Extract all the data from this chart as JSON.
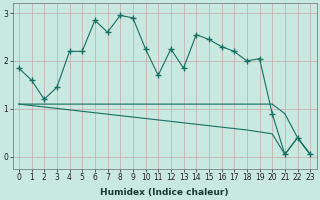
{
  "xlabel": "Humidex (Indice chaleur)",
  "background_color": "#c8e8e0",
  "grid_color": "#b8c8c0",
  "line_color": "#1a6e62",
  "ylim": [
    -0.25,
    3.2
  ],
  "xlim": [
    -0.5,
    23.5
  ],
  "yticks": [
    0,
    1,
    2,
    3
  ],
  "xticks": [
    0,
    1,
    2,
    3,
    4,
    5,
    6,
    7,
    8,
    9,
    10,
    11,
    12,
    13,
    14,
    15,
    16,
    17,
    18,
    19,
    20,
    21,
    22,
    23
  ],
  "line1_x": [
    0,
    1,
    2,
    3,
    4,
    5,
    6,
    7,
    8,
    9,
    10,
    11,
    12,
    13,
    14,
    15,
    16,
    17,
    18,
    19,
    20,
    21,
    22,
    23
  ],
  "line1_y": [
    1.85,
    1.6,
    1.2,
    1.45,
    2.2,
    2.2,
    2.85,
    2.6,
    2.95,
    2.9,
    2.25,
    1.7,
    2.25,
    1.85,
    2.55,
    2.45,
    2.3,
    2.2,
    2.0,
    2.05,
    0.9,
    0.05,
    0.4,
    0.05
  ],
  "line2_x": [
    0,
    1,
    2,
    3,
    4,
    5,
    6,
    7,
    8,
    9,
    10,
    11,
    12,
    13,
    14,
    15,
    16,
    17,
    18,
    19,
    20,
    21,
    22,
    23
  ],
  "line2_y": [
    1.1,
    1.1,
    1.1,
    1.1,
    1.1,
    1.1,
    1.1,
    1.1,
    1.1,
    1.1,
    1.1,
    1.1,
    1.1,
    1.1,
    1.1,
    1.1,
    1.1,
    1.1,
    1.1,
    1.1,
    1.1,
    0.9,
    0.4,
    0.05
  ],
  "line3_x": [
    0,
    1,
    2,
    3,
    4,
    5,
    6,
    7,
    8,
    9,
    10,
    11,
    12,
    13,
    14,
    15,
    16,
    17,
    18,
    19,
    20,
    21,
    22,
    23
  ],
  "line3_y": [
    1.1,
    1.07,
    1.04,
    1.01,
    0.98,
    0.95,
    0.92,
    0.89,
    0.86,
    0.83,
    0.8,
    0.77,
    0.74,
    0.71,
    0.68,
    0.65,
    0.62,
    0.59,
    0.56,
    0.52,
    0.48,
    0.05,
    0.4,
    0.05
  ]
}
